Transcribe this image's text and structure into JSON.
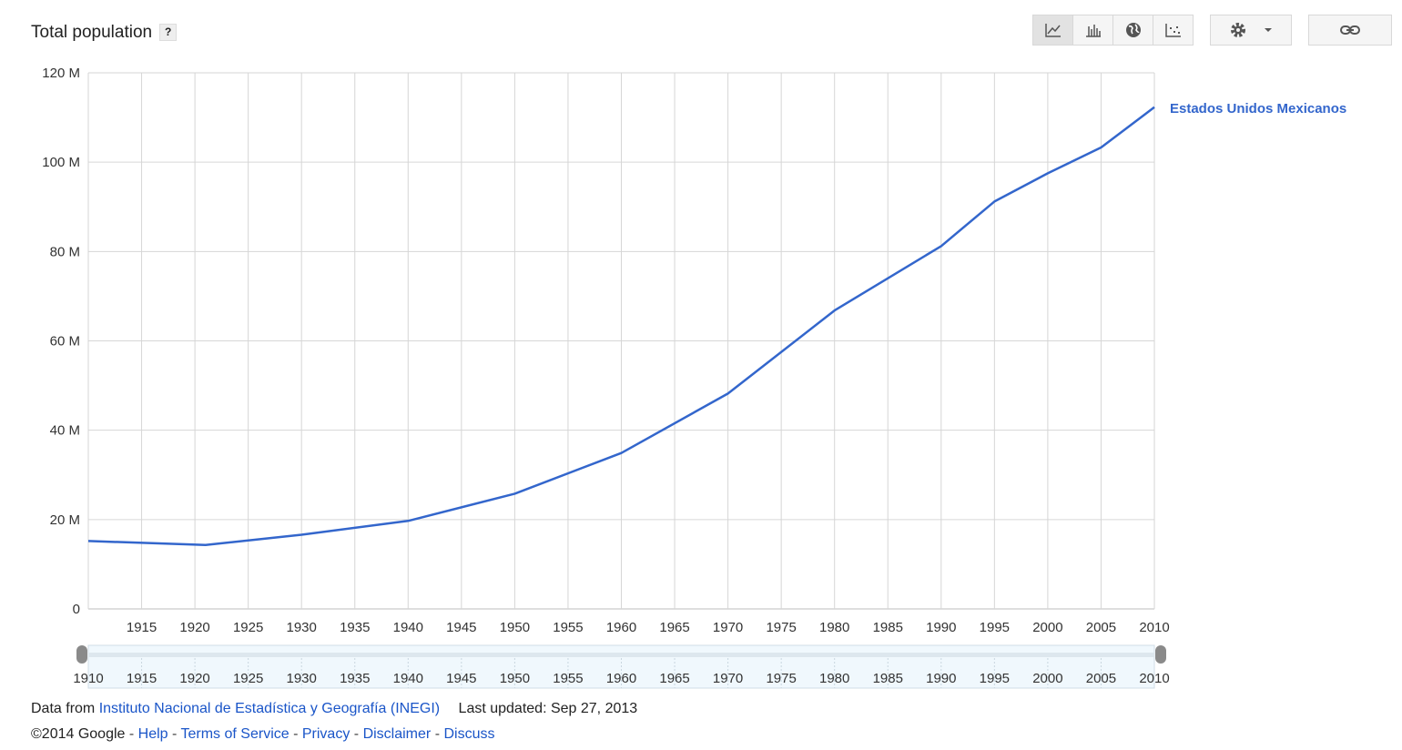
{
  "header": {
    "title": "Total population",
    "help": "?"
  },
  "toolbar": {
    "views": [
      "line-chart-icon",
      "bar-chart-icon",
      "globe-icon",
      "scatter-icon"
    ],
    "settings": "gear-icon",
    "link": "link-icon"
  },
  "chart_data": {
    "type": "line",
    "title": "Total population",
    "x": [
      1910,
      1921,
      1930,
      1940,
      1950,
      1960,
      1970,
      1980,
      1990,
      1995,
      2000,
      2005,
      2010
    ],
    "series": [
      {
        "name": "Estados Unidos Mexicanos",
        "values": [
          15.2,
          14.3,
          16.6,
          19.7,
          25.8,
          34.9,
          48.2,
          66.8,
          81.2,
          91.2,
          97.5,
          103.3,
          112.3
        ]
      }
    ],
    "yticks": [
      "0",
      "20 M",
      "40 M",
      "60 M",
      "80 M",
      "100 M",
      "120 M"
    ],
    "xticks": [
      "1915",
      "1920",
      "1925",
      "1930",
      "1935",
      "1940",
      "1945",
      "1950",
      "1955",
      "1960",
      "1965",
      "1970",
      "1975",
      "1980",
      "1985",
      "1990",
      "1995",
      "2000",
      "2005",
      "2010"
    ],
    "slider_ticks": [
      "1910",
      "1915",
      "1920",
      "1925",
      "1930",
      "1935",
      "1940",
      "1945",
      "1950",
      "1955",
      "1960",
      "1965",
      "1970",
      "1975",
      "1980",
      "1985",
      "1990",
      "1995",
      "2000",
      "2005",
      "2010"
    ],
    "ylim": [
      0,
      120
    ],
    "xlim": [
      1910,
      2010
    ],
    "grid": true,
    "legend": "right"
  },
  "footer": {
    "data_from_label": "Data from",
    "source_link": "Instituto Nacional de Estadística y Geografía (INEGI)",
    "last_updated": "Last updated: Sep 27, 2013",
    "copyright": "©2014 Google",
    "links": [
      "Help",
      "Terms of Service",
      "Privacy",
      "Disclaimer",
      "Discuss"
    ]
  }
}
